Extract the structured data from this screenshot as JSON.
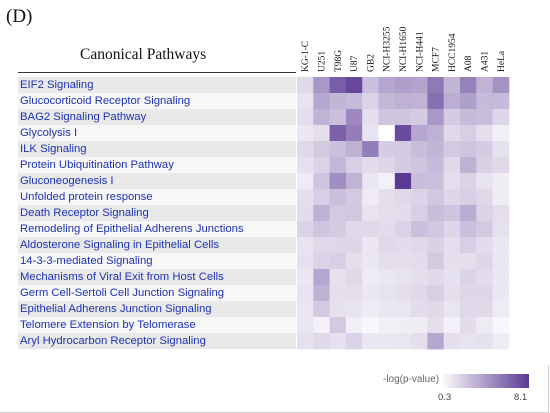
{
  "panel_label": "(D)",
  "chart_data": {
    "type": "heatmap",
    "title": "Canonical Pathways",
    "pathways": [
      "EIF2 Signaling",
      "Glucocorticoid Receptor Signaling",
      "BAG2 Signaling Pathway",
      "Glycolysis I",
      "ILK Signaling",
      "Protein Ubiquitination Pathway",
      "Gluconeogenesis I",
      "Unfolded protein response",
      "Death Receptor Signaling",
      "Remodeling of Epithelial Adherens Junctions",
      "Aldosterone Signaling in Epithelial Cells",
      "14-3-3-mediated Signaling",
      "Mechanisms of Viral Exit from Host Cells",
      "Germ Cell-Sertoli Cell Junction Signaling",
      "Epithelial Adherens Junction Signaling",
      "Telomere Extension by Telomerase",
      "Aryl Hydrocarbon Receptor Signaling"
    ],
    "cell_lines": [
      "KG-1-C",
      "U251",
      "T98G",
      "U87",
      "GB2",
      "NCI-H3255",
      "NCI-H1650",
      "NCI-H441",
      "MCF7",
      "HCC1954",
      "A08",
      "A431",
      "HeLa"
    ],
    "values": [
      [
        1.8,
        4.4,
        6.7,
        7.6,
        2.8,
        3.8,
        4.1,
        3.9,
        5.6,
        3.2,
        5.3,
        3.3,
        4.6
      ],
      [
        1.4,
        3.8,
        3.2,
        3.0,
        2.0,
        3.1,
        3.4,
        3.3,
        6.0,
        3.5,
        4.1,
        3.0,
        3.0
      ],
      [
        1.6,
        3.3,
        2.8,
        5.0,
        1.6,
        2.6,
        2.6,
        2.3,
        4.4,
        2.3,
        3.0,
        2.9,
        1.9
      ],
      [
        1.2,
        1.6,
        6.6,
        5.4,
        1.4,
        0.3,
        7.4,
        3.8,
        3.4,
        1.8,
        2.2,
        1.6,
        0.9
      ],
      [
        1.8,
        2.4,
        2.8,
        3.4,
        5.4,
        2.3,
        2.4,
        2.9,
        3.2,
        2.4,
        2.6,
        2.3,
        1.5
      ],
      [
        1.5,
        2.0,
        3.1,
        2.2,
        1.7,
        1.9,
        2.3,
        2.6,
        3.0,
        1.8,
        3.4,
        2.1,
        1.8
      ],
      [
        1.1,
        2.6,
        4.8,
        3.3,
        1.2,
        0.8,
        8.1,
        2.9,
        2.8,
        1.6,
        2.0,
        1.4,
        1.0
      ],
      [
        1.6,
        2.2,
        2.8,
        2.4,
        1.1,
        1.6,
        1.8,
        2.0,
        2.5,
        1.9,
        2.2,
        1.8,
        1.0
      ],
      [
        1.7,
        3.4,
        2.4,
        2.5,
        1.4,
        1.6,
        1.7,
        2.2,
        2.9,
        2.6,
        3.6,
        2.0,
        1.6
      ],
      [
        2.0,
        2.6,
        2.3,
        1.8,
        1.8,
        1.7,
        2.0,
        2.8,
        2.5,
        1.9,
        2.8,
        2.4,
        1.5
      ],
      [
        1.4,
        1.8,
        1.9,
        1.9,
        1.2,
        1.8,
        1.7,
        1.8,
        2.1,
        1.6,
        2.2,
        1.7,
        1.2
      ],
      [
        1.5,
        2.0,
        2.2,
        1.6,
        1.2,
        1.6,
        1.6,
        1.7,
        2.4,
        1.6,
        1.6,
        1.9,
        1.2
      ],
      [
        1.2,
        3.8,
        1.5,
        1.8,
        1.1,
        1.2,
        1.4,
        1.6,
        1.8,
        1.5,
        2.0,
        1.7,
        1.2
      ],
      [
        1.4,
        3.4,
        1.6,
        1.6,
        1.2,
        1.4,
        1.6,
        1.8,
        2.2,
        1.6,
        1.9,
        1.9,
        1.2
      ],
      [
        1.3,
        2.4,
        1.5,
        1.4,
        1.1,
        1.2,
        1.3,
        1.7,
        1.8,
        1.3,
        1.8,
        1.8,
        1.1
      ],
      [
        1.3,
        0.8,
        2.4,
        0.9,
        0.6,
        0.9,
        1.0,
        1.0,
        1.6,
        0.8,
        1.7,
        1.1,
        0.6
      ],
      [
        1.5,
        1.8,
        1.5,
        2.0,
        1.2,
        1.2,
        1.3,
        1.6,
        3.8,
        1.6,
        1.4,
        1.5,
        1.1
      ]
    ],
    "colorbar": {
      "label": "-log(p-value)",
      "min": 0.3,
      "max": 8.1,
      "min_label": "0.3",
      "max_label": "8.1",
      "low_color": "#ffffff",
      "high_color": "#5b3a94"
    }
  }
}
